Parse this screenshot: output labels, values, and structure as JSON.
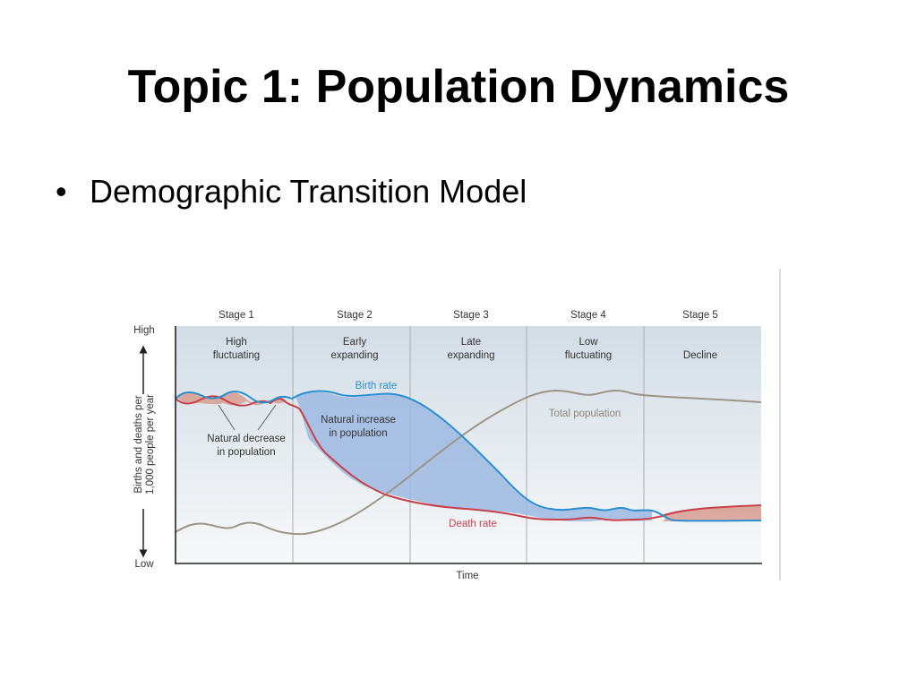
{
  "slide": {
    "title": "Topic 1: Population Dynamics",
    "bullet_char": "•",
    "bullet_text": "Demographic Transition Model"
  },
  "diagram": {
    "stages": [
      {
        "name": "Stage 1",
        "line1": "High",
        "line2": "fluctuating"
      },
      {
        "name": "Stage 2",
        "line1": "Early",
        "line2": "expanding"
      },
      {
        "name": "Stage 3",
        "line1": "Late",
        "line2": "expanding"
      },
      {
        "name": "Stage 4",
        "line1": "Low",
        "line2": "fluctuating"
      },
      {
        "name": "Stage 5",
        "line1": "Decline",
        "line2": ""
      }
    ],
    "y_high": "High",
    "y_low": "Low",
    "y_axis_line1": "Births and deaths per",
    "y_axis_line2": "1,000 people per year",
    "x_axis": "Time",
    "birth_rate_label": "Birth rate",
    "death_rate_label": "Death rate",
    "total_population_label": "Total population",
    "natural_decrease_line1": "Natural decrease",
    "natural_decrease_line2": "in population",
    "natural_increase_line1": "Natural increase",
    "natural_increase_line2": "in population",
    "colors": {
      "birth_rate": "#2b8fd0",
      "death_rate": "#c8404a",
      "total_population": "#9a9688",
      "increase_fill": "#9cb9e2",
      "decrease_fill": "#d89c90",
      "label_blue": "#2b8fd0",
      "label_red": "#c8404a",
      "label_grey": "#8b877c"
    }
  }
}
